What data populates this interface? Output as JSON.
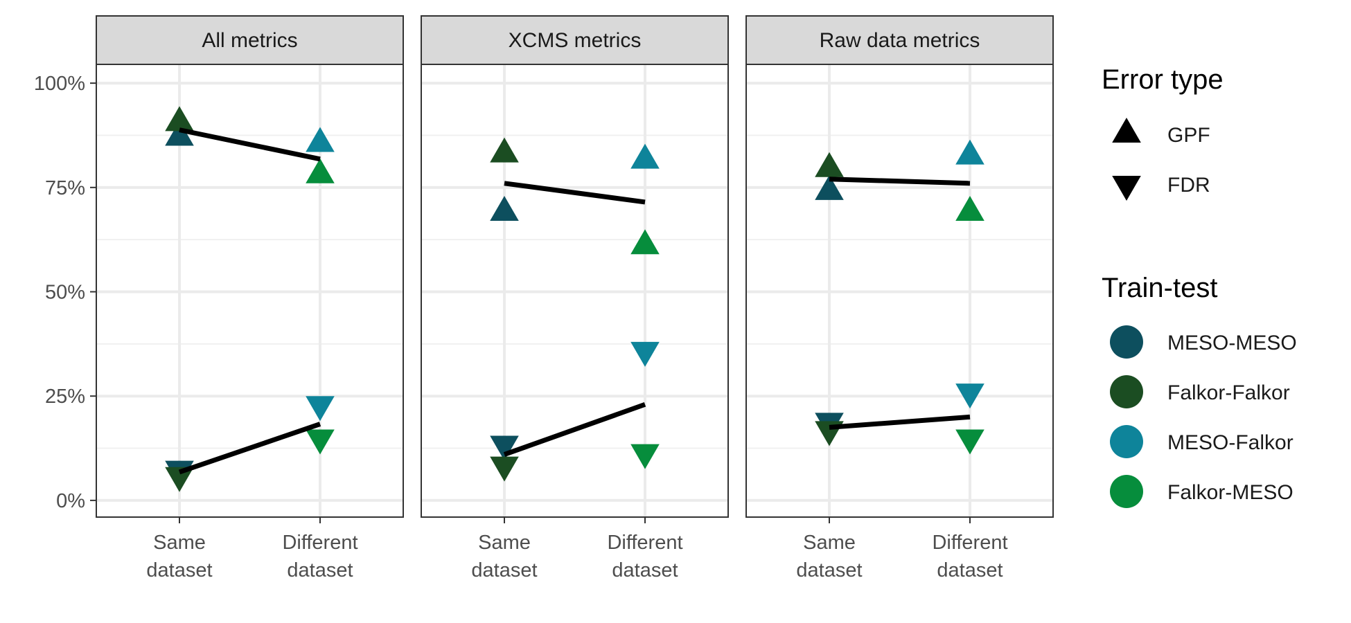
{
  "chart_data": {
    "type": "scatter",
    "y_axis": {
      "range": [
        -0.04,
        1.045
      ],
      "breaks": [
        0,
        0.25,
        0.5,
        0.75,
        1.0
      ],
      "minor_breaks": [
        0.125,
        0.375,
        0.625,
        0.875
      ],
      "tick_labels": [
        "0%",
        "25%",
        "50%",
        "75%",
        "100%"
      ],
      "format": "percent"
    },
    "x_axis": {
      "categories": [
        {
          "key": "same",
          "lines": [
            "Same",
            "dataset"
          ]
        },
        {
          "key": "different",
          "lines": [
            "Different",
            "dataset"
          ]
        }
      ]
    },
    "grid": true,
    "legend_position": "right",
    "legend": {
      "error_type": {
        "title": "Error type",
        "items": [
          {
            "key": "GPF",
            "label": "GPF",
            "shape": "triangle-up"
          },
          {
            "key": "FDR",
            "label": "FDR",
            "shape": "triangle-down"
          }
        ]
      },
      "train_test": {
        "title": "Train-test",
        "items": [
          {
            "key": "MESO-MESO",
            "label": "MESO-MESO",
            "color": "#0d4f5e"
          },
          {
            "key": "Falkor-Falkor",
            "label": "Falkor-Falkor",
            "color": "#1b4d22"
          },
          {
            "key": "MESO-Falkor",
            "label": "MESO-Falkor",
            "color": "#0e849a"
          },
          {
            "key": "Falkor-MESO",
            "label": "Falkor-MESO",
            "color": "#068d3c"
          }
        ]
      }
    },
    "panels": [
      {
        "title": "All metrics",
        "points": [
          {
            "x": "same",
            "train_test": "MESO-MESO",
            "error_type": "GPF",
            "y": 0.87
          },
          {
            "x": "same",
            "train_test": "Falkor-Falkor",
            "error_type": "GPF",
            "y": 0.905
          },
          {
            "x": "different",
            "train_test": "MESO-Falkor",
            "error_type": "GPF",
            "y": 0.855
          },
          {
            "x": "different",
            "train_test": "Falkor-MESO",
            "error_type": "GPF",
            "y": 0.78
          },
          {
            "x": "same",
            "train_test": "MESO-MESO",
            "error_type": "FDR",
            "y": 0.075
          },
          {
            "x": "same",
            "train_test": "Falkor-Falkor",
            "error_type": "FDR",
            "y": 0.06
          },
          {
            "x": "different",
            "train_test": "MESO-Falkor",
            "error_type": "FDR",
            "y": 0.23
          },
          {
            "x": "different",
            "train_test": "Falkor-MESO",
            "error_type": "FDR",
            "y": 0.15
          }
        ],
        "lines": [
          {
            "error_type": "GPF",
            "same": 0.888,
            "different": 0.818
          },
          {
            "error_type": "FDR",
            "same": 0.068,
            "different": 0.183
          }
        ]
      },
      {
        "title": "XCMS metrics",
        "points": [
          {
            "x": "same",
            "train_test": "MESO-MESO",
            "error_type": "GPF",
            "y": 0.69
          },
          {
            "x": "same",
            "train_test": "Falkor-Falkor",
            "error_type": "GPF",
            "y": 0.83
          },
          {
            "x": "different",
            "train_test": "MESO-Falkor",
            "error_type": "GPF",
            "y": 0.815
          },
          {
            "x": "different",
            "train_test": "Falkor-MESO",
            "error_type": "GPF",
            "y": 0.61
          },
          {
            "x": "same",
            "train_test": "MESO-MESO",
            "error_type": "FDR",
            "y": 0.135
          },
          {
            "x": "same",
            "train_test": "Falkor-Falkor",
            "error_type": "FDR",
            "y": 0.085
          },
          {
            "x": "different",
            "train_test": "MESO-Falkor",
            "error_type": "FDR",
            "y": 0.36
          },
          {
            "x": "different",
            "train_test": "Falkor-MESO",
            "error_type": "FDR",
            "y": 0.115
          }
        ],
        "lines": [
          {
            "error_type": "GPF",
            "same": 0.76,
            "different": 0.715
          },
          {
            "error_type": "FDR",
            "same": 0.11,
            "different": 0.23
          }
        ]
      },
      {
        "title": "Raw data metrics",
        "points": [
          {
            "x": "same",
            "train_test": "MESO-MESO",
            "error_type": "GPF",
            "y": 0.74
          },
          {
            "x": "same",
            "train_test": "Falkor-Falkor",
            "error_type": "GPF",
            "y": 0.795
          },
          {
            "x": "different",
            "train_test": "MESO-Falkor",
            "error_type": "GPF",
            "y": 0.825
          },
          {
            "x": "different",
            "train_test": "Falkor-MESO",
            "error_type": "GPF",
            "y": 0.69
          },
          {
            "x": "same",
            "train_test": "MESO-MESO",
            "error_type": "FDR",
            "y": 0.19
          },
          {
            "x": "same",
            "train_test": "Falkor-Falkor",
            "error_type": "FDR",
            "y": 0.17
          },
          {
            "x": "different",
            "train_test": "MESO-Falkor",
            "error_type": "FDR",
            "y": 0.26
          },
          {
            "x": "different",
            "train_test": "Falkor-MESO",
            "error_type": "FDR",
            "y": 0.15
          }
        ],
        "lines": [
          {
            "error_type": "GPF",
            "same": 0.77,
            "different": 0.76
          },
          {
            "error_type": "FDR",
            "same": 0.175,
            "different": 0.2
          }
        ]
      }
    ]
  }
}
